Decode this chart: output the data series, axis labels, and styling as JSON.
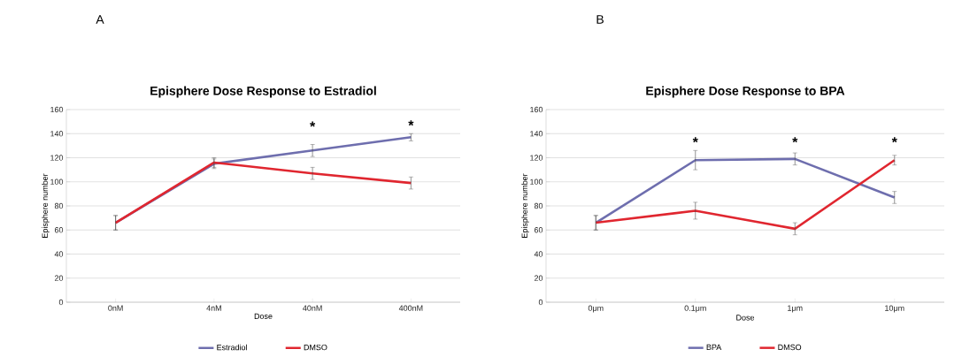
{
  "chart_data": [
    {
      "type": "line",
      "title": "Episphere Dose Response to Estradiol",
      "xlabel": "Dose",
      "ylabel": "Episphere number",
      "categories": [
        "0nM",
        "4nM",
        "40nM",
        "400nM"
      ],
      "series": [
        {
          "name": "Estradiol",
          "color": "#6e6eae",
          "values": [
            66,
            115,
            126,
            137
          ],
          "errors": [
            6,
            4,
            5,
            3
          ]
        },
        {
          "name": "DMSO",
          "color": "#e0262f",
          "values": [
            66,
            116,
            107,
            99
          ],
          "errors": [
            6,
            4,
            5,
            5
          ]
        }
      ],
      "ylim": [
        0,
        160
      ],
      "yticks": [
        0,
        20,
        40,
        60,
        80,
        100,
        120,
        140,
        160
      ],
      "grid": "y",
      "legend": "bottom",
      "marker": "none",
      "line_style": "solid",
      "annotations": [
        "A",
        "*",
        "*"
      ]
    },
    {
      "type": "line",
      "title": "Episphere Dose Response to BPA",
      "xlabel": "Dose",
      "ylabel": "Episphere number",
      "categories": [
        "0μm",
        "0.1μm",
        "1μm",
        "10μm"
      ],
      "series": [
        {
          "name": "BPA",
          "color": "#6e6eae",
          "values": [
            66,
            118,
            119,
            87
          ],
          "errors": [
            6,
            8,
            5,
            5
          ]
        },
        {
          "name": "DMSO",
          "color": "#e0262f",
          "values": [
            66,
            76,
            61,
            118
          ],
          "errors": [
            6,
            7,
            5,
            4
          ]
        }
      ],
      "ylim": [
        0,
        160
      ],
      "yticks": [
        0,
        20,
        40,
        60,
        80,
        100,
        120,
        140,
        160
      ],
      "grid": "y",
      "legend": "bottom",
      "marker": "none",
      "line_style": "solid",
      "annotations": [
        "B",
        "*",
        "*",
        "*"
      ]
    }
  ]
}
